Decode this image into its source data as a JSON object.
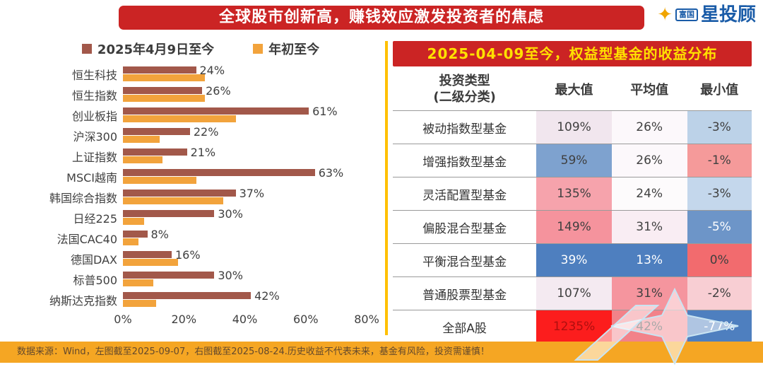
{
  "header": {
    "title": "全球股市创新高，赚钱效应激发投资者的焦虑",
    "logo": {
      "star_icon": "star-icon",
      "brand_small": "富国",
      "brand_main": "星投顾",
      "brand_color": "#1A5CA8",
      "star_color": "#F0A500"
    }
  },
  "chart_data": {
    "type": "bar",
    "orientation": "horizontal",
    "categories": [
      "恒生科技",
      "恒生指数",
      "创业板指",
      "沪深300",
      "上证指数",
      "MSCI越南",
      "韩国综合指数",
      "日经225",
      "法国CAC40",
      "德国DAX",
      "标普500",
      "纳斯达克指数"
    ],
    "series": [
      {
        "name": "2025年4月9日至今",
        "color": "#A2584A",
        "values": [
          24,
          26,
          61,
          22,
          21,
          63,
          37,
          30,
          8,
          16,
          30,
          42
        ],
        "data_labels": true
      },
      {
        "name": "年初至今",
        "color": "#F2A33C",
        "values": [
          27,
          27,
          37,
          12,
          13,
          24,
          33,
          7,
          5,
          18,
          10,
          11
        ],
        "data_labels": false
      }
    ],
    "x_ticks": [
      "0%",
      "20%",
      "40%",
      "60%",
      "80%"
    ],
    "xlim": [
      0,
      80
    ],
    "legend_position": "top",
    "grid": false
  },
  "table": {
    "title": "2025-04-09至今，权益型基金的收益分布",
    "type_column_header": {
      "line1": "投资类型",
      "line2": "(二级分类)"
    },
    "value_column_headers": [
      "最大值",
      "平均值",
      "最小值"
    ],
    "rows": [
      {
        "name": "被动指数型基金",
        "cells": [
          {
            "text": "109%",
            "bg": "#F1E6EE"
          },
          {
            "text": "26%",
            "bg": "#FCF8FB"
          },
          {
            "text": "-3%",
            "bg": "#BCD2E8"
          }
        ]
      },
      {
        "name": "增强指数型基金",
        "cells": [
          {
            "text": "59%",
            "bg": "#7EA2CF"
          },
          {
            "text": "26%",
            "bg": "#FCF8FB"
          },
          {
            "text": "-1%",
            "bg": "#F59A9A"
          }
        ]
      },
      {
        "name": "灵活配置型基金",
        "cells": [
          {
            "text": "135%",
            "bg": "#F6A3AC"
          },
          {
            "text": "24%",
            "bg": "#FDFBFC"
          },
          {
            "text": "-3%",
            "bg": "#C4D7EC"
          }
        ]
      },
      {
        "name": "偏股混合型基金",
        "cells": [
          {
            "text": "149%",
            "bg": "#F5939D"
          },
          {
            "text": "31%",
            "bg": "#F9EDF3"
          },
          {
            "text": "-5%",
            "bg": "#6D95C8",
            "fg": "#FFFFFF"
          }
        ]
      },
      {
        "name": "平衡混合型基金",
        "cells": [
          {
            "text": "39%",
            "bg": "#4E7FBF",
            "fg": "#FFFFFF"
          },
          {
            "text": "13%",
            "bg": "#4E7FBF",
            "fg": "#FFFFFF"
          },
          {
            "text": "0%",
            "bg": "#F26B6E",
            "fg": "#3F3F3F"
          }
        ]
      },
      {
        "name": "普通股票型基金",
        "cells": [
          {
            "text": "107%",
            "bg": "#F4EAF1"
          },
          {
            "text": "31%",
            "bg": "#F5959E"
          },
          {
            "text": "-2%",
            "bg": "#F8CED3"
          }
        ]
      },
      {
        "name": "全部A股",
        "cells": [
          {
            "text": "1235%",
            "bg": "#FC1D1D",
            "fg": "#AE0F0F"
          },
          {
            "text": "42%",
            "bg": "#F28289"
          },
          {
            "text": "-77%",
            "bg": "#4E7FBF",
            "fg": "#FFFFFF"
          }
        ]
      }
    ]
  },
  "footer": {
    "text": "数据来源：Wind，左图截至2025-09-07，右图截至2025-08-24.历史收益不代表未来，基金有风险，投资需谨慎！",
    "bg": "#F5A623"
  },
  "colors": {
    "title_bar_bg": "#CB2424",
    "title_text": "#FFFFFF",
    "panel_header_bg": "#CB2424",
    "panel_header_text": "#FFE100",
    "divider": "#FFC000",
    "watermark": "#C9E4F2"
  }
}
